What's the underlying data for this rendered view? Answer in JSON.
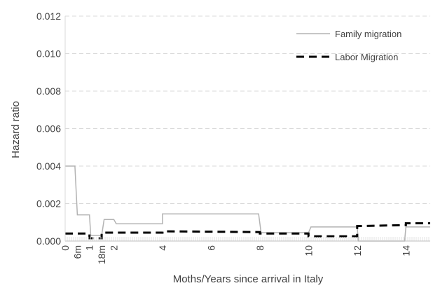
{
  "chart_data": {
    "type": "line",
    "title": "",
    "xlabel": "Moths/Years since arrival in Italy",
    "ylabel": "Hazard ratio",
    "xlim": [
      0,
      15
    ],
    "ylim": [
      0,
      0.012
    ],
    "grid": true,
    "legend_position": "top-right",
    "y_ticks": [
      {
        "value": 0.0,
        "label": "0.000"
      },
      {
        "value": 0.002,
        "label": "0.002"
      },
      {
        "value": 0.004,
        "label": "0.004"
      },
      {
        "value": 0.006,
        "label": "0.006"
      },
      {
        "value": 0.008,
        "label": "0.008"
      },
      {
        "value": 0.01,
        "label": "0.010"
      },
      {
        "value": 0.012,
        "label": "0.012"
      }
    ],
    "x_ticks": [
      {
        "value": 0,
        "label": "0"
      },
      {
        "value": 0.5,
        "label": "6m"
      },
      {
        "value": 1,
        "label": "1"
      },
      {
        "value": 1.5,
        "label": "18m"
      },
      {
        "value": 2,
        "label": "2"
      },
      {
        "value": 4,
        "label": "4"
      },
      {
        "value": 6,
        "label": "6"
      },
      {
        "value": 8,
        "label": "8"
      },
      {
        "value": 10,
        "label": "10"
      },
      {
        "value": 12,
        "label": "12"
      },
      {
        "value": 14,
        "label": "14"
      }
    ],
    "series": [
      {
        "name": "Family migration",
        "color": "#b3b3b3",
        "style": "solid",
        "points": [
          [
            0,
            0.004
          ],
          [
            0.4,
            0.004
          ],
          [
            0.5,
            0.0014
          ],
          [
            1.0,
            0.0014
          ],
          [
            1.05,
            0.0003
          ],
          [
            1.5,
            0.0003
          ],
          [
            1.6,
            0.00115
          ],
          [
            2.0,
            0.00115
          ],
          [
            2.1,
            0.00092
          ],
          [
            4.0,
            0.00092
          ],
          [
            4.0,
            0.00145
          ],
          [
            7.95,
            0.00145
          ],
          [
            8.05,
            0.00045
          ],
          [
            10.0,
            0.00045
          ],
          [
            10.1,
            0.00075
          ],
          [
            12.0,
            0.00075
          ],
          [
            12.05,
            0.0
          ],
          [
            13.95,
            0.0
          ],
          [
            14.0,
            0.00075
          ],
          [
            15.0,
            0.00075
          ]
        ]
      },
      {
        "name": "Labor Migration",
        "color": "#000000",
        "style": "dashed",
        "points": [
          [
            0,
            0.0004
          ],
          [
            1.0,
            0.0004
          ],
          [
            1.0,
            0.00015
          ],
          [
            1.5,
            0.00015
          ],
          [
            1.5,
            0.00045
          ],
          [
            4.0,
            0.00045
          ],
          [
            4.0,
            0.00052
          ],
          [
            8.0,
            0.00048
          ],
          [
            8.0,
            0.0004
          ],
          [
            10.0,
            0.0004
          ],
          [
            10.0,
            0.00025
          ],
          [
            12.0,
            0.00025
          ],
          [
            12.0,
            0.0008
          ],
          [
            14.0,
            0.00085
          ],
          [
            14.0,
            0.00095
          ],
          [
            15.0,
            0.00095
          ]
        ]
      }
    ]
  }
}
